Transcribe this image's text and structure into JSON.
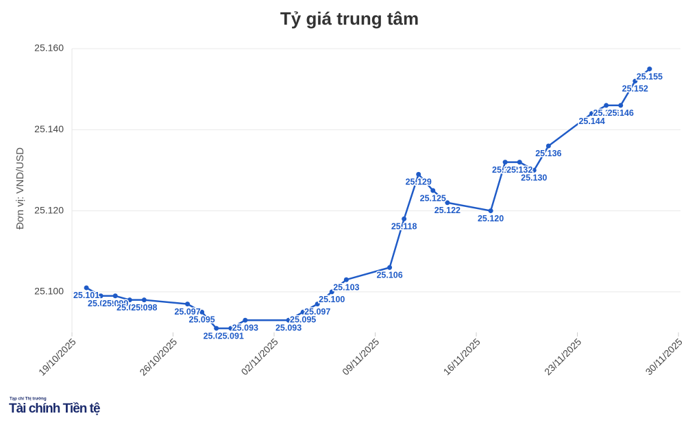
{
  "chart_data": {
    "type": "line",
    "title": "Tỷ giá trung tâm",
    "y_label": "Đơn vị: VND/USD",
    "color": "#1f5bc7",
    "grid": true,
    "x": [
      "2025-10-20",
      "2025-10-21",
      "2025-10-22",
      "2025-10-23",
      "2025-10-24",
      "2025-10-27",
      "2025-10-28",
      "2025-10-29",
      "2025-10-30",
      "2025-10-31",
      "2025-11-03",
      "2025-11-04",
      "2025-11-05",
      "2025-11-06",
      "2025-11-07",
      "2025-11-10",
      "2025-11-11",
      "2025-11-12",
      "2025-11-13",
      "2025-11-14",
      "2025-11-17",
      "2025-11-18",
      "2025-11-19",
      "2025-11-20",
      "2025-11-21",
      "2025-11-24",
      "2025-11-25",
      "2025-11-26",
      "2025-11-27",
      "2025-11-28"
    ],
    "values": [
      25101,
      25099,
      25099,
      25098,
      25098,
      25097,
      25095,
      25091,
      25091,
      25093,
      25093,
      25095,
      25097,
      25100,
      25103,
      25106,
      25118,
      25129,
      25125,
      25122,
      25120,
      25132,
      25132,
      25130,
      25136,
      25144,
      25146,
      25146,
      25152,
      25155
    ],
    "value_labels": [
      "25.101",
      "25.099",
      "25.099",
      "25.098",
      "25.098",
      "25.097",
      "25.095",
      "25.091",
      "25.091",
      "25.093",
      "25.093",
      "25.095",
      "25.097",
      "25.100",
      "25.103",
      "25.106",
      "25.118",
      "25.129",
      "25.125",
      "25.122",
      "25.120",
      "25.132",
      "25.132",
      "25.130",
      "25.136",
      "25.144",
      "25.146",
      "25.146",
      "25.152",
      "25.155"
    ],
    "xlim": [
      "2025-10-19",
      "2025-11-30"
    ],
    "xticks": [
      {
        "value": "2025-10-19",
        "label": "19/10/2025"
      },
      {
        "value": "2025-10-26",
        "label": "26/10/2025"
      },
      {
        "value": "2025-11-02",
        "label": "02/11/2025"
      },
      {
        "value": "2025-11-09",
        "label": "09/11/2025"
      },
      {
        "value": "2025-11-16",
        "label": "16/11/2025"
      },
      {
        "value": "2025-11-23",
        "label": "23/11/2025"
      },
      {
        "value": "2025-11-30",
        "label": "30/11/2025"
      }
    ],
    "ylim": [
      25090,
      25160
    ],
    "yticks": [
      {
        "value": 25100,
        "label": "25.100"
      },
      {
        "value": 25120,
        "label": "25.120"
      },
      {
        "value": 25140,
        "label": "25.140"
      },
      {
        "value": 25160,
        "label": "25.160"
      }
    ]
  },
  "logo": {
    "small": "Tạp chí Thị trường",
    "name": "Tài chính Tiền tệ"
  }
}
